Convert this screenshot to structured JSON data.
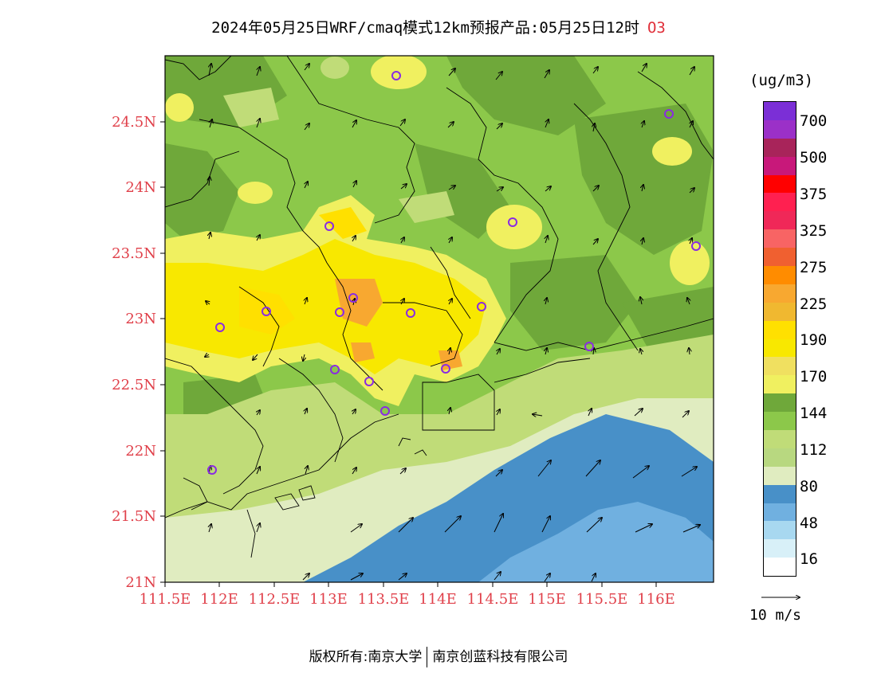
{
  "title": {
    "main": "2024年05月25日WRF/cmaq模式12km预报产品:05月25日12时",
    "pollutant": "O3"
  },
  "map": {
    "x_ticks": [
      "111.5E",
      "112E",
      "112.5E",
      "113E",
      "113.5E",
      "114E",
      "114.5E",
      "115E",
      "115.5E",
      "116E"
    ],
    "y_ticks": [
      "24.5N",
      "24N",
      "23.5N",
      "23N",
      "22.5N",
      "22N",
      "21.5N",
      "21N"
    ],
    "tick_color": "#e0404a",
    "station_marker_color": "#8a2be2"
  },
  "legend": {
    "unit": "(ug/m3)",
    "labels": [
      "700",
      "500",
      "375",
      "325",
      "275",
      "225",
      "190",
      "170",
      "144",
      "112",
      "80",
      "48",
      "16"
    ],
    "colors": [
      "#7b2fd6",
      "#9b30c8",
      "#a8245a",
      "#c8187a",
      "#ff0000",
      "#ff2050",
      "#f02858",
      "#f86464",
      "#f06030",
      "#ff8c00",
      "#f8a830",
      "#f0b830",
      "#ffe000",
      "#f8e800",
      "#f0e060",
      "#f0f060",
      "#6fa83a",
      "#8cc84a",
      "#c0dc78",
      "#b8d880",
      "#e0ecc0",
      "#4890c8",
      "#70b0e0",
      "#a8d8f0",
      "#d8f0f8",
      "#ffffff"
    ]
  },
  "wind_reference": "10 m/s",
  "footer": {
    "left": "版权所有:南京大学",
    "right": "南京创蓝科技有限公司"
  }
}
